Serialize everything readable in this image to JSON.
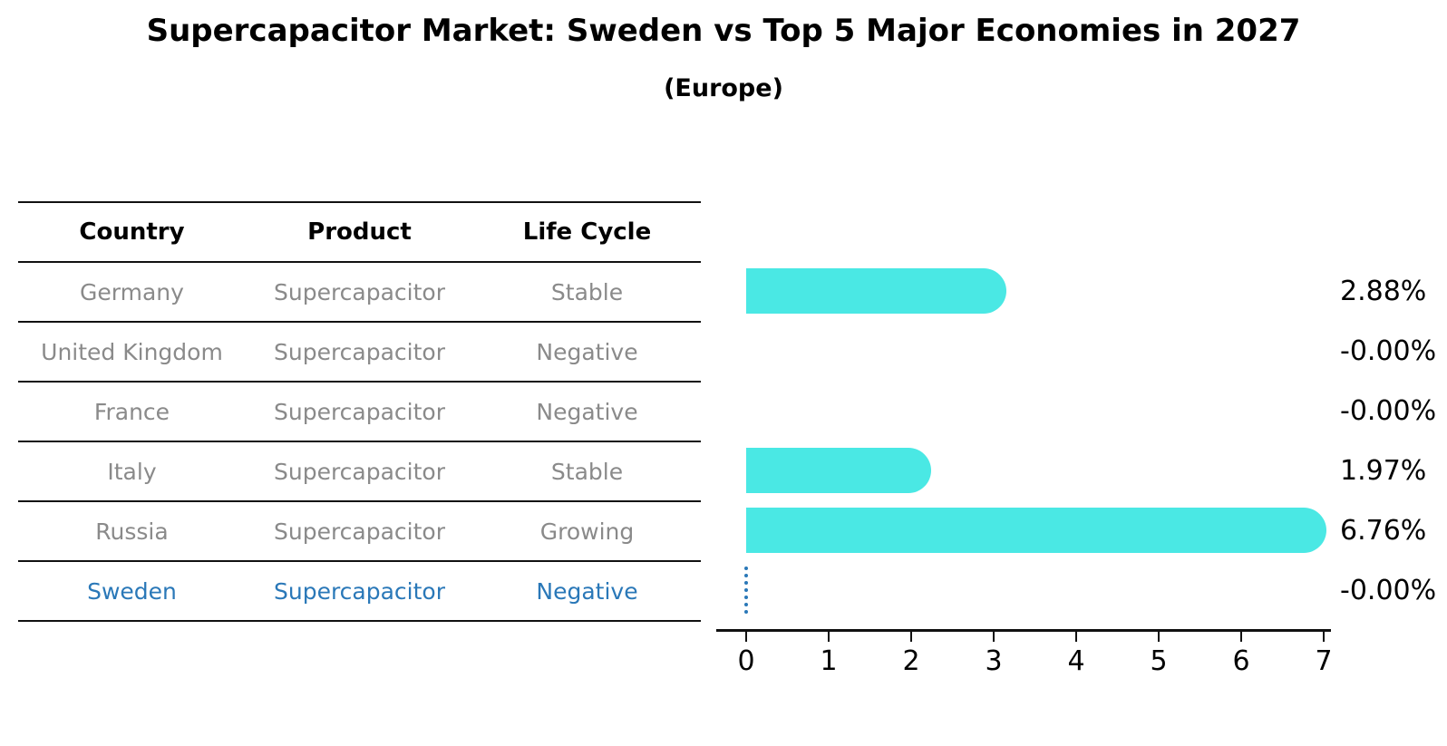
{
  "title": "Supercapacitor Market: Sweden vs Top 5 Major Economies in 2027",
  "subtitle": "(Europe)",
  "colors": {
    "bar": "#4ae8e4",
    "highlight_blue": "#2a78b8",
    "table_text_gray": "#8a8a8a",
    "ink": "#111111"
  },
  "table": {
    "columns": [
      "Country",
      "Product",
      "Life Cycle"
    ],
    "rows": [
      {
        "country": "Germany",
        "product": "Supercapacitor",
        "life_cycle": "Stable",
        "highlight": false
      },
      {
        "country": "United Kingdom",
        "product": "Supercapacitor",
        "life_cycle": "Negative",
        "highlight": false
      },
      {
        "country": "France",
        "product": "Supercapacitor",
        "life_cycle": "Negative",
        "highlight": false
      },
      {
        "country": "Italy",
        "product": "Supercapacitor",
        "life_cycle": "Stable",
        "highlight": false
      },
      {
        "country": "Russia",
        "product": "Supercapacitor",
        "life_cycle": "Growing",
        "highlight": false
      },
      {
        "country": "Sweden",
        "product": "Supercapacitor",
        "life_cycle": "Negative",
        "highlight": true
      }
    ]
  },
  "chart_data": {
    "type": "bar",
    "orientation": "horizontal",
    "title": "Supercapacitor Market: Sweden vs Top 5 Major Economies in 2027",
    "subtitle": "(Europe)",
    "categories": [
      "Germany",
      "United Kingdom",
      "France",
      "Italy",
      "Russia",
      "Sweden"
    ],
    "values": [
      2.88,
      -0.0,
      -0.0,
      1.97,
      6.76,
      -0.0
    ],
    "value_labels": [
      "2.88%",
      "-0.00%",
      "-0.00%",
      "1.97%",
      "6.76%",
      "-0.00%"
    ],
    "xlim": [
      0,
      7
    ],
    "xticks": [
      0,
      1,
      2,
      3,
      4,
      5,
      6,
      7
    ],
    "highlight_category": "Sweden",
    "grid": false,
    "legend": false
  }
}
